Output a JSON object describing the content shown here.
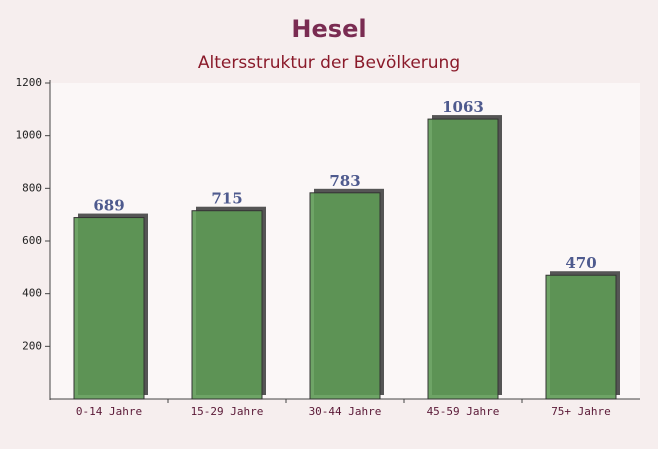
{
  "chart_data": {
    "type": "bar",
    "title": "Hesel",
    "subtitle": "Altersstruktur der Bevölkerung",
    "categories": [
      "0-14 Jahre",
      "15-29 Jahre",
      "30-44 Jahre",
      "45-59 Jahre",
      "75+ Jahre"
    ],
    "values": [
      689,
      715,
      783,
      1063,
      470
    ],
    "color": "#5e9a55",
    "ylim": [
      0,
      1200
    ],
    "yticks": [
      200,
      400,
      600,
      800,
      1000,
      1200
    ]
  }
}
